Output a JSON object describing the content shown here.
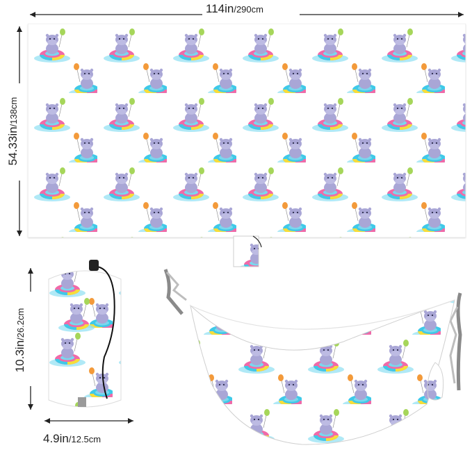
{
  "dimensions": {
    "width_label_in": "114in",
    "width_label_cm": "/290cm",
    "length_label_in": "54.33in",
    "length_label_cm": "/138cm",
    "bag_height_in": "10.3in",
    "bag_height_cm": "/26.2cm",
    "bag_width_in": "4.9in",
    "bag_width_cm": "/12.5cm"
  },
  "icons": {
    "pattern": "hippo-on-swim-ring-with-balloon",
    "bag": "drawstring-stuff-sack",
    "hammock": "hammock-with-straps"
  },
  "colors": {
    "hippo": "#a9a6d6",
    "water": "#41c8e6",
    "ring_pink": "#f06aa8",
    "ring_yellow": "#f7dd3a",
    "ring_cyan": "#3fc9e8",
    "balloon_green": "#a6d65a",
    "balloon_orange": "#f39a3a",
    "balloon_pink": "#f07aaa",
    "strap": "#7d7d7d"
  }
}
